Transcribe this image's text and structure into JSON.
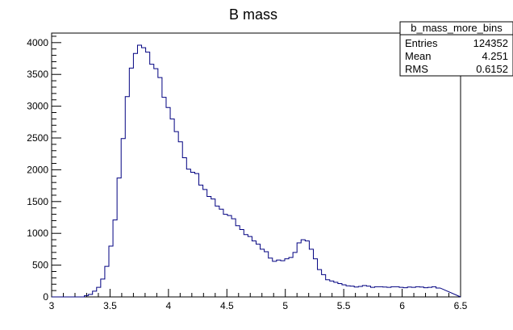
{
  "chart_data": {
    "type": "bar",
    "title": "B mass",
    "xlabel": "",
    "ylabel": "",
    "xlim": [
      3,
      6.5
    ],
    "ylim": [
      0,
      4150
    ],
    "grid": false,
    "x_ticks": [
      "3",
      "3.5",
      "4",
      "4.5",
      "5",
      "5.5",
      "6",
      "6.5"
    ],
    "y_ticks": [
      "0",
      "500",
      "1000",
      "1500",
      "2000",
      "2500",
      "3000",
      "3500",
      "4000"
    ],
    "bin_width": 0.035,
    "series": [
      {
        "line_color": "#000080",
        "values": [
          0,
          0,
          0,
          0,
          0,
          0,
          0,
          0,
          20,
          40,
          90,
          150,
          280,
          480,
          800,
          1210,
          1870,
          2490,
          3150,
          3600,
          3830,
          3960,
          3920,
          3850,
          3660,
          3590,
          3450,
          3140,
          2980,
          2800,
          2600,
          2440,
          2190,
          2010,
          1960,
          1940,
          1760,
          1690,
          1580,
          1540,
          1430,
          1380,
          1300,
          1280,
          1230,
          1120,
          1060,
          980,
          950,
          880,
          830,
          750,
          710,
          610,
          560,
          580,
          570,
          600,
          620,
          700,
          850,
          900,
          880,
          750,
          600,
          430,
          350,
          270,
          250,
          230,
          210,
          190,
          175,
          170,
          155,
          165,
          180,
          170,
          150,
          160,
          160,
          155,
          150,
          160,
          160,
          150,
          145,
          155,
          150,
          160,
          155,
          145,
          150,
          160,
          140
        ]
      }
    ],
    "stats_box": {
      "name": "b_mass_more_bins",
      "rows": [
        {
          "label": "Entries",
          "value": "124352"
        },
        {
          "label": "Mean",
          "value": "4.251"
        },
        {
          "label": "RMS",
          "value": "0.6152"
        }
      ]
    }
  }
}
